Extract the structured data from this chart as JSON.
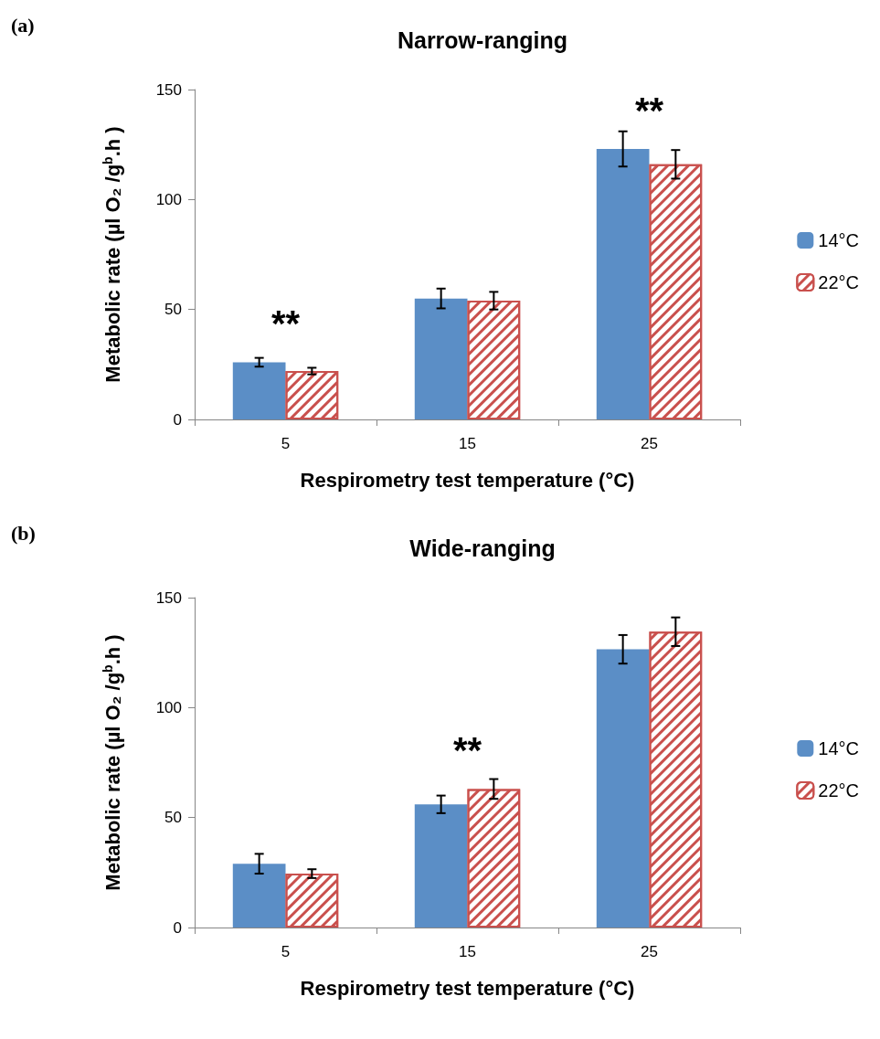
{
  "chart_data": [
    {
      "type": "bar",
      "title": "Narrow-ranging",
      "xlabel": "Respirometry test temperature (°C)",
      "ylabel": "Metabolic rate (µl O₂ /g$^{b}$.h )",
      "categories": [
        "5",
        "15",
        "25"
      ],
      "series": [
        {
          "name": "14°C",
          "color": "#5b8ec6",
          "values": [
            26,
            55,
            123
          ],
          "errors": [
            2,
            4.5,
            8
          ]
        },
        {
          "name": "22°C",
          "color": "#c9504d",
          "values": [
            22,
            54,
            116
          ],
          "errors": [
            1.5,
            4,
            6.5
          ]
        }
      ],
      "ylim": [
        0,
        150
      ],
      "yticks": [
        0,
        50,
        100,
        150
      ],
      "grid": false,
      "legend": "right",
      "annotations": [
        "(a)",
        {
          "text": "**",
          "x": "5",
          "y": 26
        },
        {
          "text": "**",
          "x": "25",
          "y": 123
        }
      ]
    },
    {
      "type": "bar",
      "title": "Wide-ranging",
      "xlabel": "Respirometry test temperature (°C)",
      "ylabel": "Metabolic rate (µl O₂ /g$^{b}$.h )",
      "categories": [
        "5",
        "15",
        "25"
      ],
      "series": [
        {
          "name": "14°C",
          "color": "#5b8ec6",
          "values": [
            29,
            56,
            126.5
          ],
          "errors": [
            4.5,
            4,
            6.5
          ]
        },
        {
          "name": "22°C",
          "color": "#c9504d",
          "values": [
            24.5,
            63,
            134.5
          ],
          "errors": [
            2,
            4.5,
            6.5
          ]
        }
      ],
      "ylim": [
        0,
        150
      ],
      "yticks": [
        0,
        50,
        100,
        150
      ],
      "grid": false,
      "legend": "right",
      "annotations": [
        "(b)",
        {
          "text": "**",
          "x": "15",
          "y": 63
        }
      ]
    }
  ]
}
